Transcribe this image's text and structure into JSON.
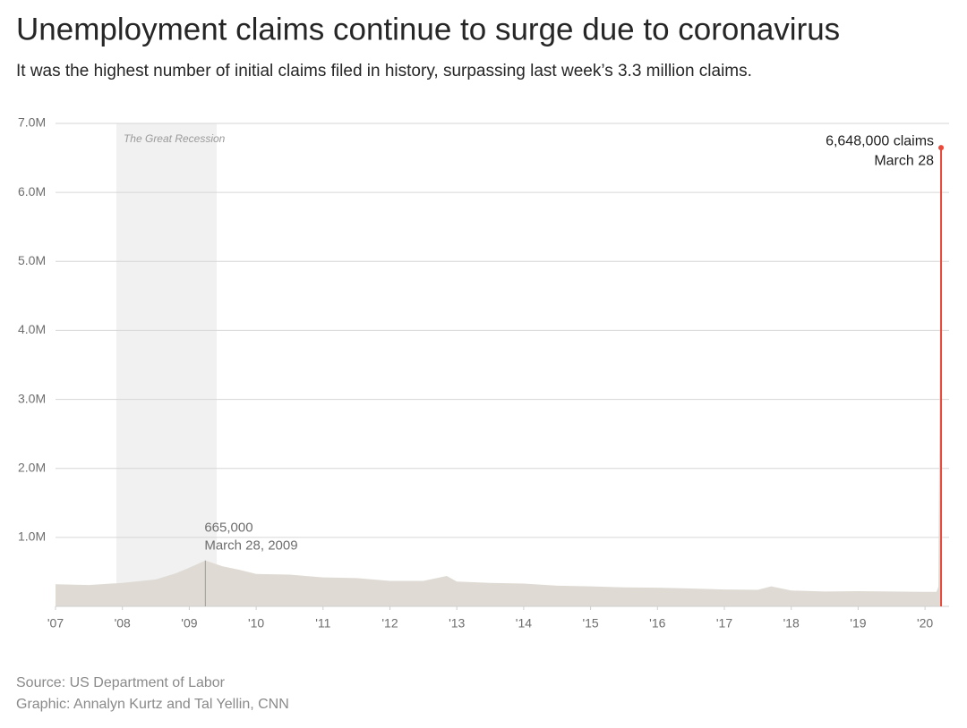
{
  "chart_data": {
    "type": "area",
    "title": "Unemployment claims continue to surge due to coronavirus",
    "subtitle": "It was the highest number of initial claims filed in history, surpassing last week’s 3.3 million claims.",
    "source": "Source: US Department of Labor",
    "credit": "Graphic: Annalyn Kurtz and Tal Yellin, CNN",
    "color": "#dfdbd4",
    "highlight_color": "#e8493a",
    "x": [
      2007.0,
      2007.5,
      2008.0,
      2008.5,
      2008.8,
      2009.0,
      2009.24,
      2009.5,
      2009.75,
      2010.0,
      2010.5,
      2011.0,
      2011.5,
      2012.0,
      2012.5,
      2012.85,
      2013.0,
      2013.5,
      2014.0,
      2014.5,
      2015.0,
      2015.5,
      2016.0,
      2016.5,
      2017.0,
      2017.5,
      2017.7,
      2018.0,
      2018.5,
      2019.0,
      2019.5,
      2020.0,
      2020.17,
      2020.2,
      2020.22,
      2020.24
    ],
    "values": [
      320000,
      310000,
      340000,
      390000,
      480000,
      560000,
      665000,
      580000,
      530000,
      470000,
      460000,
      420000,
      410000,
      370000,
      370000,
      440000,
      360000,
      340000,
      330000,
      300000,
      290000,
      275000,
      270000,
      260000,
      245000,
      240000,
      290000,
      230000,
      215000,
      220000,
      215000,
      210000,
      211000,
      282000,
      3307000,
      6648000
    ],
    "xlim": [
      2007,
      2020.36
    ],
    "ylim": [
      0,
      7000000
    ],
    "xticks": [
      {
        "value": 2007,
        "label": "'07"
      },
      {
        "value": 2008,
        "label": "'08"
      },
      {
        "value": 2009,
        "label": "'09"
      },
      {
        "value": 2010,
        "label": "'10"
      },
      {
        "value": 2011,
        "label": "'11"
      },
      {
        "value": 2012,
        "label": "'12"
      },
      {
        "value": 2013,
        "label": "'13"
      },
      {
        "value": 2014,
        "label": "'14"
      },
      {
        "value": 2015,
        "label": "'15"
      },
      {
        "value": 2016,
        "label": "'16"
      },
      {
        "value": 2017,
        "label": "'17"
      },
      {
        "value": 2018,
        "label": "'18"
      },
      {
        "value": 2019,
        "label": "'19"
      },
      {
        "value": 2020,
        "label": "'20"
      }
    ],
    "yticks": [
      {
        "value": 1000000,
        "label": "1.0M"
      },
      {
        "value": 2000000,
        "label": "2.0M"
      },
      {
        "value": 3000000,
        "label": "3.0M"
      },
      {
        "value": 4000000,
        "label": "4.0M"
      },
      {
        "value": 5000000,
        "label": "5.0M"
      },
      {
        "value": 6000000,
        "label": "6.0M"
      },
      {
        "value": 7000000,
        "label": "7.0M"
      }
    ],
    "grid": true,
    "shaded_range": {
      "label": "The Great Recession",
      "x": [
        2007.91,
        2009.41
      ]
    },
    "annotations": [
      {
        "x": 2009.24,
        "value": 665000,
        "label": "665,000",
        "date": "March 28, 2009",
        "highlight": false
      },
      {
        "x": 2020.24,
        "value": 6648000,
        "label": "6,648,000 claims",
        "date": "March 28",
        "highlight": true
      }
    ]
  }
}
